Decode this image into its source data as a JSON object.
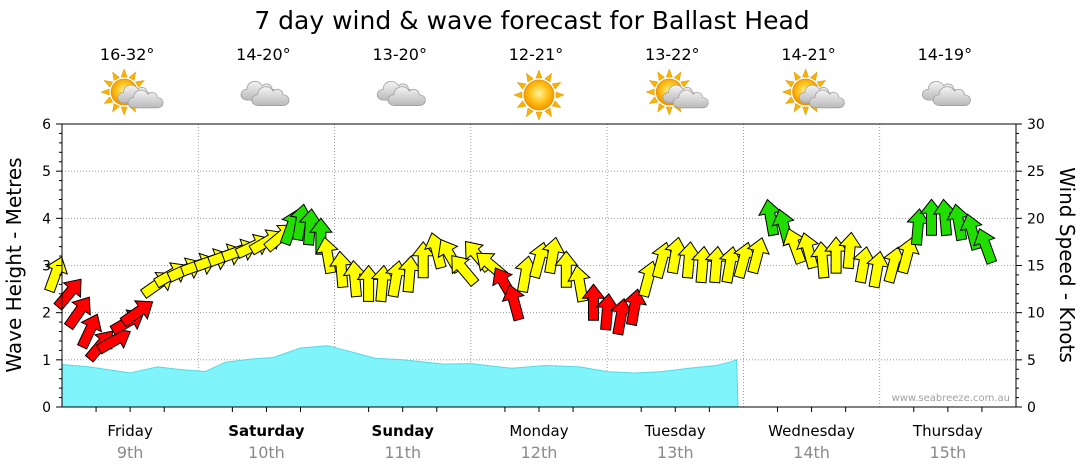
{
  "chart_data": {
    "type": "area",
    "title": "7 day wind & wave forecast for Ballast Head",
    "ylabel_left": "Wave Height - Metres",
    "ylabel_right": "Wind Speed - Knots",
    "ylim_left": [
      0,
      6
    ],
    "ylim_right": [
      0,
      30
    ],
    "left_ticks": [
      "0",
      "1",
      "2",
      "3",
      "4",
      "5",
      "6"
    ],
    "right_ticks": [
      "0",
      "5",
      "10",
      "15",
      "20",
      "25",
      "30"
    ],
    "watermark": "www.seabreeze.com.au",
    "colors": {
      "wave_fill": "#7ff5fb",
      "wave_line": "#55d8e4",
      "wind_red": "#ff0000",
      "wind_yellow": "#ffff00",
      "wind_green": "#22dd00"
    },
    "days": [
      {
        "name": "Friday",
        "date": "9th",
        "bold": false,
        "temp": "16-32°",
        "icon": "partly-cloudy-icon"
      },
      {
        "name": "Saturday",
        "date": "10th",
        "bold": true,
        "temp": "14-20°",
        "icon": "cloudy-icon"
      },
      {
        "name": "Sunday",
        "date": "11th",
        "bold": true,
        "temp": "13-20°",
        "icon": "cloudy-icon"
      },
      {
        "name": "Monday",
        "date": "12th",
        "bold": false,
        "temp": "12-21°",
        "icon": "sunny-icon"
      },
      {
        "name": "Tuesday",
        "date": "13th",
        "bold": false,
        "temp": "13-22°",
        "icon": "partly-cloudy-icon"
      },
      {
        "name": "Wednesday",
        "date": "14th",
        "bold": false,
        "temp": "14-21°",
        "icon": "partly-cloudy-icon"
      },
      {
        "name": "Thursday",
        "date": "15th",
        "bold": false,
        "temp": "14-19°",
        "icon": "cloudy-icon"
      }
    ],
    "wave_series": {
      "name": "Wave Height",
      "day_offset": [
        0,
        0.2,
        0.5,
        0.7,
        0.85,
        1.05,
        1.2,
        1.4,
        1.55,
        1.75,
        1.95,
        2.15,
        2.3,
        2.5,
        2.8,
        3.0,
        3.3,
        3.55,
        3.8,
        4.0,
        4.2,
        4.4,
        4.6,
        4.8,
        4.9,
        4.95,
        4.96
      ],
      "values": [
        0.9,
        0.85,
        0.72,
        0.85,
        0.8,
        0.75,
        0.95,
        1.02,
        1.05,
        1.25,
        1.3,
        1.15,
        1.03,
        1.0,
        0.91,
        0.92,
        0.82,
        0.88,
        0.85,
        0.75,
        0.72,
        0.75,
        0.82,
        0.88,
        0.95,
        1.0,
        0
      ]
    },
    "wind_series": {
      "name": "Wind Speed",
      "points": [
        {
          "d": -0.05,
          "kn": 14,
          "dir": 20,
          "c": "y"
        },
        {
          "d": 0.05,
          "kn": 12,
          "dir": 40,
          "c": "r"
        },
        {
          "d": 0.12,
          "kn": 10,
          "dir": 35,
          "c": "r"
        },
        {
          "d": 0.2,
          "kn": 8,
          "dir": 25,
          "c": "r"
        },
        {
          "d": 0.28,
          "kn": 6.5,
          "dir": 40,
          "c": "r"
        },
        {
          "d": 0.38,
          "kn": 7,
          "dir": 60,
          "c": "r"
        },
        {
          "d": 0.48,
          "kn": 9,
          "dir": 60,
          "c": "r"
        },
        {
          "d": 0.55,
          "kn": 10,
          "dir": 55,
          "c": "r"
        },
        {
          "d": 0.7,
          "kn": 13,
          "dir": 55,
          "c": "y"
        },
        {
          "d": 0.8,
          "kn": 14,
          "dir": 60,
          "c": "y"
        },
        {
          "d": 0.9,
          "kn": 14.5,
          "dir": 65,
          "c": "y"
        },
        {
          "d": 1.0,
          "kn": 15,
          "dir": 70,
          "c": "y"
        },
        {
          "d": 1.1,
          "kn": 15.5,
          "dir": 70,
          "c": "y"
        },
        {
          "d": 1.2,
          "kn": 16,
          "dir": 70,
          "c": "y"
        },
        {
          "d": 1.3,
          "kn": 16.5,
          "dir": 70,
          "c": "y"
        },
        {
          "d": 1.4,
          "kn": 17,
          "dir": 65,
          "c": "y"
        },
        {
          "d": 1.5,
          "kn": 17.5,
          "dir": 60,
          "c": "y"
        },
        {
          "d": 1.6,
          "kn": 18,
          "dir": 50,
          "c": "y"
        },
        {
          "d": 1.68,
          "kn": 19,
          "dir": 20,
          "c": "g"
        },
        {
          "d": 1.75,
          "kn": 19.5,
          "dir": 10,
          "c": "g"
        },
        {
          "d": 1.82,
          "kn": 19,
          "dir": 5,
          "c": "g"
        },
        {
          "d": 1.9,
          "kn": 18,
          "dir": 0,
          "c": "g"
        },
        {
          "d": 1.95,
          "kn": 16,
          "dir": 350,
          "c": "y"
        },
        {
          "d": 2.05,
          "kn": 14.5,
          "dir": 355,
          "c": "y"
        },
        {
          "d": 2.15,
          "kn": 13.5,
          "dir": 355,
          "c": "y"
        },
        {
          "d": 2.25,
          "kn": 13,
          "dir": 0,
          "c": "y"
        },
        {
          "d": 2.35,
          "kn": 13,
          "dir": 5,
          "c": "y"
        },
        {
          "d": 2.45,
          "kn": 13.5,
          "dir": 10,
          "c": "y"
        },
        {
          "d": 2.55,
          "kn": 14,
          "dir": 5,
          "c": "y"
        },
        {
          "d": 2.65,
          "kn": 15.5,
          "dir": 0,
          "c": "y"
        },
        {
          "d": 2.75,
          "kn": 16.5,
          "dir": 345,
          "c": "y"
        },
        {
          "d": 2.85,
          "kn": 16,
          "dir": 330,
          "c": "y"
        },
        {
          "d": 2.95,
          "kn": 14.5,
          "dir": 320,
          "c": "y"
        },
        {
          "d": 3.05,
          "kn": 16,
          "dir": 320,
          "c": "y"
        },
        {
          "d": 3.15,
          "kn": 15,
          "dir": 310,
          "c": "y"
        },
        {
          "d": 3.25,
          "kn": 13,
          "dir": 330,
          "c": "r"
        },
        {
          "d": 3.32,
          "kn": 11,
          "dir": 345,
          "c": "r"
        },
        {
          "d": 3.4,
          "kn": 14,
          "dir": 10,
          "c": "y"
        },
        {
          "d": 3.5,
          "kn": 15.5,
          "dir": 15,
          "c": "y"
        },
        {
          "d": 3.6,
          "kn": 16,
          "dir": 10,
          "c": "y"
        },
        {
          "d": 3.7,
          "kn": 14.5,
          "dir": 0,
          "c": "y"
        },
        {
          "d": 3.8,
          "kn": 13,
          "dir": 350,
          "c": "y"
        },
        {
          "d": 3.9,
          "kn": 11,
          "dir": 0,
          "c": "r"
        },
        {
          "d": 4.0,
          "kn": 10,
          "dir": 5,
          "c": "r"
        },
        {
          "d": 4.1,
          "kn": 9.5,
          "dir": 10,
          "c": "r"
        },
        {
          "d": 4.2,
          "kn": 10.5,
          "dir": 10,
          "c": "r"
        },
        {
          "d": 4.3,
          "kn": 13.5,
          "dir": 15,
          "c": "y"
        },
        {
          "d": 4.4,
          "kn": 15.5,
          "dir": 15,
          "c": "y"
        },
        {
          "d": 4.5,
          "kn": 16,
          "dir": 10,
          "c": "y"
        },
        {
          "d": 4.6,
          "kn": 15.5,
          "dir": 5,
          "c": "y"
        },
        {
          "d": 4.7,
          "kn": 15,
          "dir": 5,
          "c": "y"
        },
        {
          "d": 4.8,
          "kn": 15,
          "dir": 5,
          "c": "y"
        },
        {
          "d": 4.9,
          "kn": 15,
          "dir": 10,
          "c": "y"
        },
        {
          "d": 5.0,
          "kn": 15.5,
          "dir": 15,
          "c": "y"
        },
        {
          "d": 5.1,
          "kn": 16,
          "dir": 15,
          "c": "y"
        },
        {
          "d": 5.2,
          "kn": 20,
          "dir": 350,
          "c": "g"
        },
        {
          "d": 5.3,
          "kn": 19,
          "dir": 345,
          "c": "g"
        },
        {
          "d": 5.38,
          "kn": 17,
          "dir": 340,
          "c": "y"
        },
        {
          "d": 5.48,
          "kn": 16.5,
          "dir": 345,
          "c": "y"
        },
        {
          "d": 5.58,
          "kn": 15.5,
          "dir": 355,
          "c": "y"
        },
        {
          "d": 5.68,
          "kn": 16,
          "dir": 0,
          "c": "y"
        },
        {
          "d": 5.78,
          "kn": 16.5,
          "dir": 5,
          "c": "y"
        },
        {
          "d": 5.88,
          "kn": 15,
          "dir": 10,
          "c": "y"
        },
        {
          "d": 5.98,
          "kn": 14.5,
          "dir": 10,
          "c": "y"
        },
        {
          "d": 6.1,
          "kn": 15,
          "dir": 15,
          "c": "y"
        },
        {
          "d": 6.2,
          "kn": 16,
          "dir": 15,
          "c": "y"
        },
        {
          "d": 6.28,
          "kn": 19,
          "dir": 5,
          "c": "g"
        },
        {
          "d": 6.38,
          "kn": 20,
          "dir": 0,
          "c": "g"
        },
        {
          "d": 6.48,
          "kn": 20,
          "dir": 355,
          "c": "g"
        },
        {
          "d": 6.58,
          "kn": 19.5,
          "dir": 350,
          "c": "g"
        },
        {
          "d": 6.68,
          "kn": 18.5,
          "dir": 345,
          "c": "g"
        },
        {
          "d": 6.78,
          "kn": 17,
          "dir": 340,
          "c": "g"
        }
      ]
    }
  }
}
